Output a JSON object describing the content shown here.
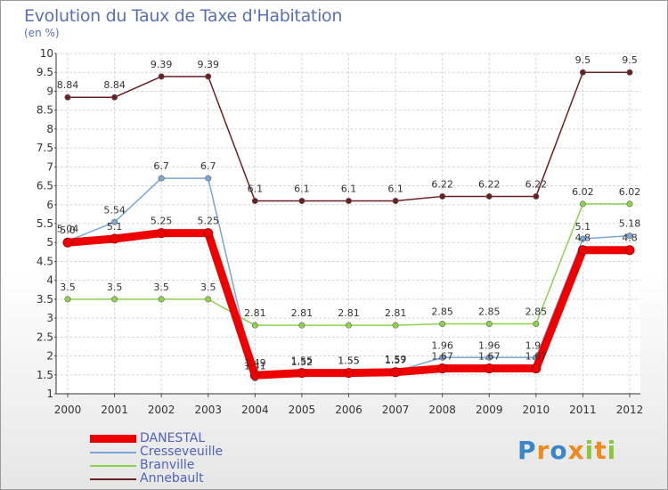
{
  "chart_data": {
    "type": "line",
    "title": "Evolution du Taux de Taxe d'Habitation",
    "ylabel": "(en %)",
    "xlabel": "",
    "categories": [
      "2000",
      "2001",
      "2002",
      "2003",
      "2004",
      "2005",
      "2006",
      "2007",
      "2008",
      "2009",
      "2010",
      "2011",
      "2012"
    ],
    "ylim": [
      1,
      10
    ],
    "yticks": [
      "1",
      "1.5",
      "2",
      "2.5",
      "3",
      "3.5",
      "4",
      "4.5",
      "5",
      "5.5",
      "6",
      "6.5",
      "7",
      "7.5",
      "8",
      "8.5",
      "9",
      "9.5",
      "10"
    ],
    "grid": true,
    "series": [
      {
        "name": "Annebault",
        "color": "#6b1f22",
        "values": [
          8.84,
          8.84,
          9.39,
          9.39,
          6.1,
          6.1,
          6.1,
          6.1,
          6.22,
          6.22,
          6.22,
          9.5,
          9.5
        ],
        "labels": [
          "8.84",
          "8.84",
          "9.39",
          "9.39",
          "6.1",
          "6.1",
          "6.1",
          "6.1",
          "6.22",
          "6.22",
          "6.22",
          "9.5",
          "9.5"
        ]
      },
      {
        "name": "Branville",
        "color": "#8fd14f",
        "values": [
          3.5,
          3.5,
          3.5,
          3.5,
          2.81,
          2.81,
          2.81,
          2.81,
          2.85,
          2.85,
          2.85,
          6.02,
          6.02
        ],
        "labels": [
          "3.5",
          "3.5",
          "3.5",
          "3.5",
          "2.81",
          "2.81",
          "2.81",
          "2.81",
          "2.85",
          "2.85",
          "2.85",
          "6.02",
          "6.02"
        ]
      },
      {
        "name": "Cresseveuille",
        "color": "#7ba7d6",
        "values": [
          5.04,
          5.54,
          6.7,
          6.7,
          1.41,
          1.52,
          1.55,
          1.59,
          1.96,
          1.96,
          1.96,
          5.1,
          5.18
        ],
        "labels": [
          "5.04",
          "5.54",
          "6.7",
          "6.7",
          "1.41",
          "1.52",
          "1.55",
          "1.59",
          "1.96",
          "1.96",
          "1.96",
          "5.1",
          "5.18"
        ]
      },
      {
        "name": "DANESTAL",
        "color": "#ee0000",
        "values": [
          5.0,
          5.1,
          5.25,
          5.25,
          1.49,
          1.55,
          1.55,
          1.57,
          1.67,
          1.67,
          1.67,
          4.8,
          4.8
        ],
        "labels": [
          "5.0",
          "5.1",
          "5.25",
          "5.25",
          "1.49",
          "1.55",
          "1.55",
          "1.57",
          "1.67",
          "1.67",
          "1.67",
          "4.8",
          "4.8"
        ]
      }
    ]
  },
  "legend": {
    "items": [
      {
        "name": "DANESTAL",
        "color": "#ee0000"
      },
      {
        "name": "Cresseveuille",
        "color": "#7ba7d6"
      },
      {
        "name": "Branville",
        "color": "#8fd14f"
      },
      {
        "name": "Annebault",
        "color": "#6b1f22"
      }
    ]
  },
  "brand": {
    "letters": [
      "P",
      "r",
      "o",
      "x",
      "i",
      "t",
      "i"
    ],
    "colors": [
      "#3a86c8",
      "#f08a1c",
      "#3a86c8",
      "#f08a1c",
      "#8cc63f",
      "#f08a1c",
      "#8cc63f"
    ]
  }
}
